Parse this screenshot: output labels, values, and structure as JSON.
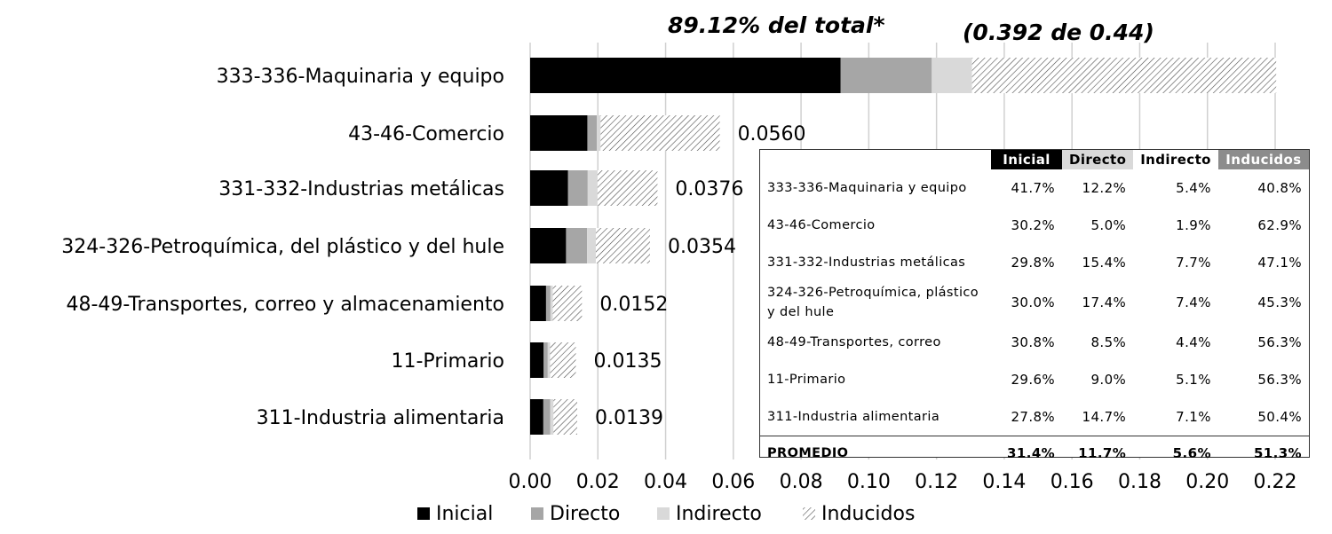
{
  "chart_data": {
    "type": "bar",
    "orientation": "horizontal",
    "stacked": true,
    "categories": [
      "333-336-Maquinaria y equipo",
      "43-46-Comercio",
      "331-332-Industrias metálicas",
      "324-326-Petroquímica, del plástico y del hule",
      "48-49-Transportes, correo y almacenamiento",
      "11-Primario",
      "311-Industria alimentaria"
    ],
    "series": [
      {
        "name": "Inicial",
        "color": "#000000",
        "pattern": "solid",
        "values": [
          0.0917,
          0.0169,
          0.0112,
          0.0106,
          0.0047,
          0.004,
          0.0039
        ]
      },
      {
        "name": "Directo",
        "color": "#a6a6a6",
        "pattern": "solid",
        "values": [
          0.0269,
          0.0028,
          0.0058,
          0.0062,
          0.0013,
          0.0012,
          0.002
        ]
      },
      {
        "name": "Indirecto",
        "color": "#d9d9d9",
        "pattern": "solid",
        "values": [
          0.0119,
          0.0011,
          0.0029,
          0.0026,
          0.0007,
          0.0007,
          0.001
        ]
      },
      {
        "name": "Inducidos",
        "color": "#ffffff",
        "pattern": "hatch",
        "values": [
          0.0898,
          0.0352,
          0.0177,
          0.016,
          0.0086,
          0.0076,
          0.007
        ]
      }
    ],
    "data_labels": [
      "",
      "0.0560",
      "0.0376",
      "0.0354",
      "0.0152",
      "0.0135",
      "0.0139"
    ],
    "xlim": [
      0,
      0.22
    ],
    "xticks": [
      "0.00",
      "0.02",
      "0.04",
      "0.06",
      "0.08",
      "0.10",
      "0.12",
      "0.14",
      "0.16",
      "0.18",
      "0.20",
      "0.22"
    ],
    "grid": "vertical",
    "legend": "bottom",
    "annotations": {
      "share": "89.12%  del total*",
      "ratio": "(0.392 de 0.44)"
    }
  },
  "table": {
    "headers": [
      "Inicial",
      "Directo",
      "Indirecto",
      "Inducidos"
    ],
    "rows": [
      {
        "label": "333-336-Maquinaria y equipo",
        "values": [
          "41.7%",
          "12.2%",
          "5.4%",
          "40.8%"
        ]
      },
      {
        "label": "43-46-Comercio",
        "values": [
          "30.2%",
          "5.0%",
          "1.9%",
          "62.9%"
        ]
      },
      {
        "label": "331-332-Industrias metálicas",
        "values": [
          "29.8%",
          "15.4%",
          "7.7%",
          "47.1%"
        ]
      },
      {
        "label": "324-326-Petroquímica, plástico y del hule",
        "values": [
          "30.0%",
          "17.4%",
          "7.4%",
          "45.3%"
        ]
      },
      {
        "label": "48-49-Transportes, correo",
        "values": [
          "30.8%",
          "8.5%",
          "4.4%",
          "56.3%"
        ]
      },
      {
        "label": "11-Primario",
        "values": [
          "29.6%",
          "9.0%",
          "5.1%",
          "56.3%"
        ]
      },
      {
        "label": "311-Industria alimentaria",
        "values": [
          "27.8%",
          "14.7%",
          "7.1%",
          "50.4%"
        ]
      }
    ],
    "average": {
      "label": "PROMEDIO",
      "values": [
        "31.4%",
        "11.7%",
        "5.6%",
        "51.3%"
      ]
    }
  }
}
